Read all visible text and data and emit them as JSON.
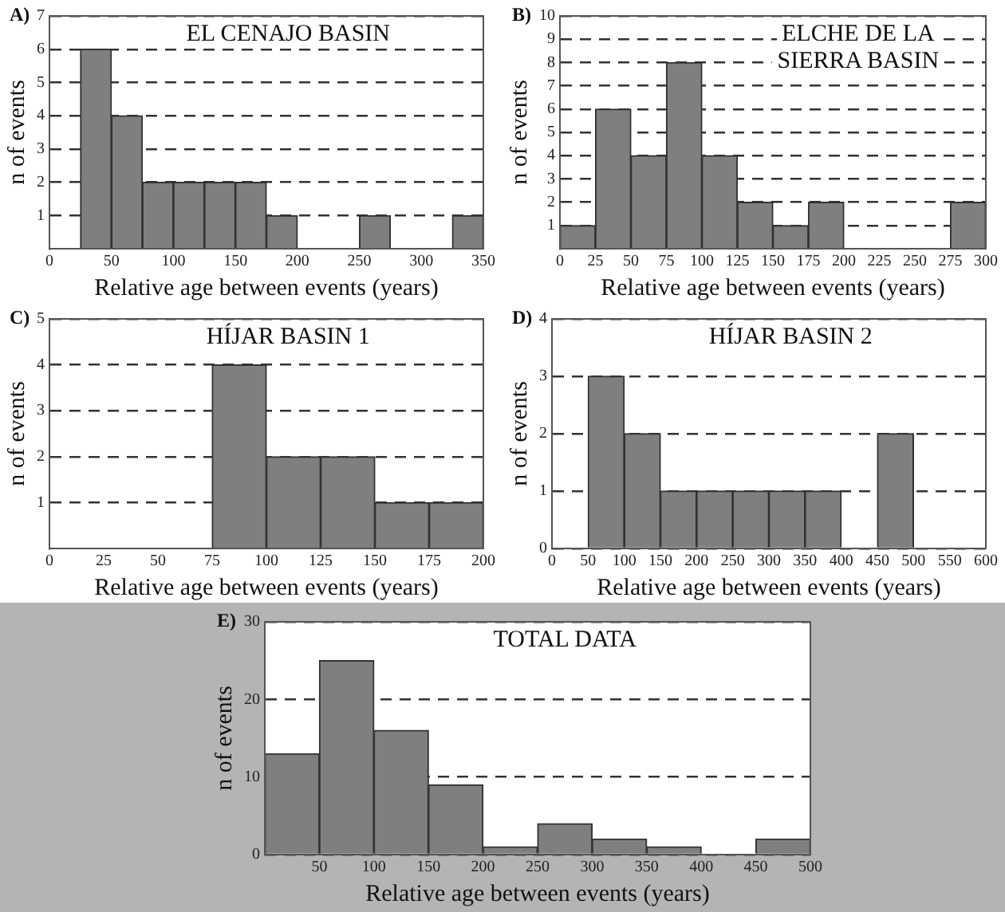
{
  "chart_data": [
    {
      "type": "histogram",
      "title": "EL CENAJO BASIN",
      "xlabel": "Relative age between events (years)",
      "ylabel": "n of events",
      "annotations": [
        "A)"
      ],
      "color": "#7f7f7f",
      "bins": [
        25,
        50,
        75,
        100,
        125,
        150,
        175,
        200,
        225,
        250,
        275,
        300,
        325,
        350
      ],
      "values": [
        6,
        4,
        2,
        2,
        2,
        2,
        1,
        0,
        0,
        1,
        0,
        0,
        1
      ],
      "xlim": [
        0,
        350
      ],
      "xticks": [
        0,
        50,
        100,
        150,
        200,
        250,
        300,
        350
      ],
      "ylim": [
        0,
        7
      ],
      "yticks": [
        1,
        2,
        3,
        4,
        5,
        6,
        7
      ],
      "grid": "y",
      "legend": false
    },
    {
      "type": "histogram",
      "title": "ELCHE DE LA SIERRA BASIN",
      "xlabel": "Relative age between events (years)",
      "ylabel": "n of events",
      "annotations": [
        "B)"
      ],
      "color": "#7f7f7f",
      "bins": [
        0,
        25,
        50,
        75,
        100,
        125,
        150,
        175,
        200,
        225,
        250,
        275,
        300
      ],
      "values": [
        1,
        6,
        4,
        8,
        4,
        2,
        1,
        2,
        0,
        0,
        0,
        2
      ],
      "xlim": [
        0,
        300
      ],
      "xticks": [
        0,
        25,
        50,
        75,
        100,
        125,
        150,
        175,
        200,
        225,
        250,
        275,
        300
      ],
      "ylim": [
        0,
        10
      ],
      "yticks": [
        1,
        2,
        3,
        4,
        5,
        6,
        7,
        8,
        9,
        10
      ],
      "grid": "y",
      "legend": false
    },
    {
      "type": "histogram",
      "title": "HÍJAR BASIN 1",
      "xlabel": "Relative age between events (years)",
      "ylabel": "n of events",
      "annotations": [
        "C)"
      ],
      "color": "#7f7f7f",
      "bins": [
        75,
        100,
        125,
        150,
        175,
        200
      ],
      "values": [
        4,
        2,
        2,
        1,
        1
      ],
      "xlim": [
        0,
        200
      ],
      "xticks": [
        0,
        25,
        50,
        75,
        100,
        125,
        150,
        175,
        200
      ],
      "ylim": [
        0,
        5
      ],
      "yticks": [
        1,
        2,
        3,
        4,
        5
      ],
      "grid": "y",
      "legend": false
    },
    {
      "type": "histogram",
      "title": "HÍJAR BASIN 2",
      "xlabel": "Relative age between events (years)",
      "ylabel": "n of events",
      "annotations": [
        "D)"
      ],
      "color": "#7f7f7f",
      "bins": [
        50,
        100,
        150,
        200,
        250,
        300,
        350,
        400,
        450,
        500
      ],
      "values": [
        3,
        2,
        1,
        1,
        1,
        1,
        1,
        0,
        2
      ],
      "xlim": [
        0,
        600
      ],
      "xticks": [
        0,
        50,
        100,
        150,
        200,
        250,
        300,
        350,
        400,
        450,
        500,
        550,
        600
      ],
      "ylim": [
        0,
        4
      ],
      "yticks": [
        0,
        1,
        2,
        3,
        4
      ],
      "grid": "y",
      "legend": false
    },
    {
      "type": "histogram",
      "title": "TOTAL DATA",
      "xlabel": "Relative age between events (years)",
      "ylabel": "n of events",
      "annotations": [
        "E)"
      ],
      "color": "#7f7f7f",
      "bins": [
        0,
        50,
        100,
        150,
        200,
        250,
        300,
        350,
        400,
        450,
        500
      ],
      "values": [
        13,
        25,
        16,
        9,
        1,
        4,
        2,
        1,
        0,
        2
      ],
      "xlim": [
        0,
        500
      ],
      "xticks": [
        50,
        100,
        150,
        200,
        250,
        300,
        350,
        400,
        450,
        500
      ],
      "ylim": [
        0,
        30
      ],
      "yticks": [
        0,
        10,
        20,
        30
      ],
      "grid": "y",
      "legend": false
    }
  ]
}
